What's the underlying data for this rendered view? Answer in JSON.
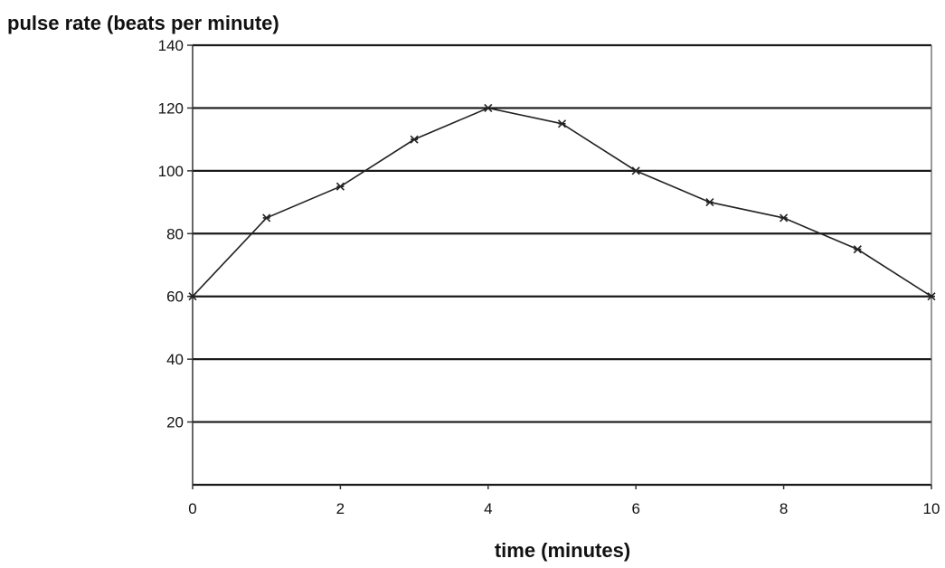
{
  "chart_data": {
    "type": "line",
    "title": "",
    "xlabel": "time (minutes)",
    "ylabel": "pulse rate (beats per minute)",
    "x": [
      0,
      1,
      2,
      3,
      4,
      5,
      6,
      7,
      8,
      9,
      10
    ],
    "series": [
      {
        "values": [
          60,
          85,
          95,
          110,
          120,
          115,
          100,
          90,
          85,
          75,
          60
        ]
      }
    ],
    "xlim": [
      0,
      10
    ],
    "ylim": [
      0,
      140
    ],
    "x_ticks": [
      "0",
      "2",
      "4",
      "6",
      "8",
      "10"
    ],
    "y_ticks": [
      "20",
      "40",
      "60",
      "80",
      "100",
      "120",
      "140"
    ],
    "grid": "horizontal",
    "legend": "none",
    "colors": {
      "line": "#222222",
      "grid": "#1a1a1a"
    }
  }
}
